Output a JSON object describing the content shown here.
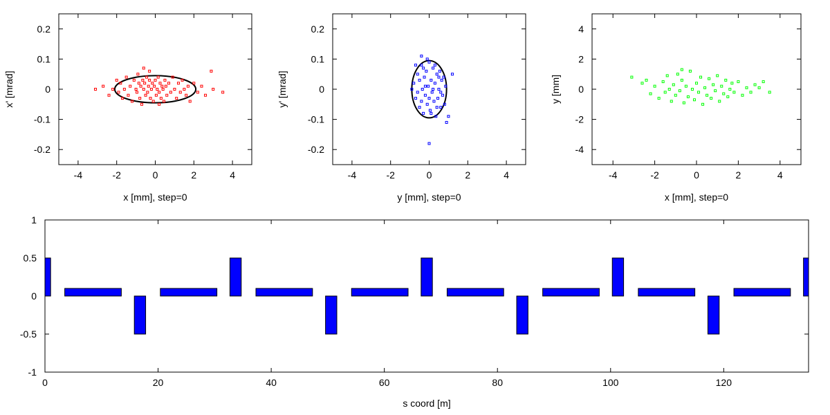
{
  "chart_data": [
    {
      "type": "scatter",
      "xlabel": "x [mm], step=0",
      "ylabel": "x' [mrad]",
      "xlim": [
        -5,
        5
      ],
      "ylim": [
        -0.25,
        0.25
      ],
      "xticks": [
        -4,
        -2,
        0,
        2,
        4
      ],
      "yticks": [
        0.2,
        0.1,
        0,
        -0.1,
        -0.2
      ],
      "ytick_labels": [
        "0.2",
        "0.1",
        "0",
        "-0.1",
        "-0.2"
      ],
      "ellipse": {
        "center": [
          0,
          0
        ],
        "semi_axes": [
          2.1,
          0.045
        ]
      },
      "marker_color": "#ff0000",
      "points": [
        [
          -3.1,
          0.0
        ],
        [
          -2.7,
          0.01
        ],
        [
          -2.4,
          -0.02
        ],
        [
          -2.2,
          0.0
        ],
        [
          -2.0,
          0.03
        ],
        [
          -1.9,
          -0.01
        ],
        [
          -1.8,
          0.02
        ],
        [
          -1.7,
          -0.03
        ],
        [
          -1.6,
          0.0
        ],
        [
          -1.5,
          0.04
        ],
        [
          -1.4,
          -0.02
        ],
        [
          -1.3,
          0.01
        ],
        [
          -1.2,
          -0.04
        ],
        [
          -1.1,
          0.03
        ],
        [
          -1.0,
          0.0
        ],
        [
          -0.95,
          -0.01
        ],
        [
          -0.9,
          0.05
        ],
        [
          -0.85,
          0.02
        ],
        [
          -0.8,
          -0.03
        ],
        [
          -0.75,
          0.01
        ],
        [
          -0.7,
          -0.05
        ],
        [
          -0.65,
          0.03
        ],
        [
          -0.6,
          0.0
        ],
        [
          -0.55,
          0.02
        ],
        [
          -0.5,
          -0.02
        ],
        [
          -0.45,
          0.04
        ],
        [
          -0.4,
          -0.01
        ],
        [
          -0.35,
          0.01
        ],
        [
          -0.3,
          0.03
        ],
        [
          -0.25,
          -0.03
        ],
        [
          -0.2,
          0.0
        ],
        [
          -0.15,
          0.02
        ],
        [
          -0.1,
          -0.04
        ],
        [
          -0.05,
          0.01
        ],
        [
          0.0,
          0.03
        ],
        [
          0.05,
          -0.02
        ],
        [
          0.1,
          0.0
        ],
        [
          0.15,
          0.04
        ],
        [
          0.2,
          -0.01
        ],
        [
          0.25,
          0.02
        ],
        [
          0.3,
          -0.03
        ],
        [
          0.35,
          0.01
        ],
        [
          0.4,
          0.0
        ],
        [
          0.45,
          -0.04
        ],
        [
          0.5,
          0.03
        ],
        [
          0.55,
          0.01
        ],
        [
          0.6,
          -0.02
        ],
        [
          0.7,
          0.02
        ],
        [
          0.8,
          -0.01
        ],
        [
          0.9,
          0.04
        ],
        [
          1.0,
          0.0
        ],
        [
          1.1,
          -0.03
        ],
        [
          1.2,
          0.02
        ],
        [
          1.3,
          -0.01
        ],
        [
          1.4,
          0.03
        ],
        [
          1.5,
          0.0
        ],
        [
          1.6,
          -0.02
        ],
        [
          1.7,
          0.01
        ],
        [
          1.8,
          -0.04
        ],
        [
          2.0,
          0.02
        ],
        [
          2.2,
          -0.01
        ],
        [
          2.4,
          0.01
        ],
        [
          2.6,
          -0.02
        ],
        [
          -0.6,
          0.07
        ],
        [
          3.5,
          -0.01
        ],
        [
          2.9,
          0.06
        ],
        [
          3.0,
          0.0
        ],
        [
          -0.3,
          0.06
        ],
        [
          0.2,
          -0.05
        ]
      ]
    },
    {
      "type": "scatter",
      "xlabel": "y [mm], step=0",
      "ylabel": "y' [mrad]",
      "xlim": [
        -5,
        5
      ],
      "ylim": [
        -0.25,
        0.25
      ],
      "xticks": [
        -4,
        -2,
        0,
        2,
        4
      ],
      "yticks": [
        0.2,
        0.1,
        0,
        -0.1,
        -0.2
      ],
      "ytick_labels": [
        "0.2",
        "0.1",
        "0",
        "-0.1",
        "-0.2"
      ],
      "ellipse": {
        "center": [
          0,
          0
        ],
        "semi_axes": [
          0.9,
          0.095
        ]
      },
      "marker_color": "#0000ff",
      "points": [
        [
          -0.8,
          0.02
        ],
        [
          -0.7,
          -0.03
        ],
        [
          -0.6,
          0.05
        ],
        [
          -0.5,
          -0.06
        ],
        [
          -0.4,
          0.08
        ],
        [
          -0.35,
          0.0
        ],
        [
          -0.3,
          -0.08
        ],
        [
          -0.25,
          0.04
        ],
        [
          -0.2,
          -0.02
        ],
        [
          -0.15,
          0.06
        ],
        [
          -0.1,
          -0.05
        ],
        [
          -0.05,
          0.01
        ],
        [
          0.0,
          0.09
        ],
        [
          0.05,
          -0.07
        ],
        [
          0.1,
          0.03
        ],
        [
          0.15,
          -0.01
        ],
        [
          0.2,
          0.07
        ],
        [
          0.25,
          -0.04
        ],
        [
          0.3,
          0.02
        ],
        [
          0.35,
          -0.09
        ],
        [
          0.4,
          0.05
        ],
        [
          0.45,
          -0.03
        ],
        [
          0.5,
          0.0
        ],
        [
          0.55,
          0.06
        ],
        [
          0.6,
          -0.06
        ],
        [
          0.65,
          0.03
        ],
        [
          0.7,
          -0.02
        ],
        [
          0.75,
          0.04
        ],
        [
          0.8,
          -0.05
        ],
        [
          0.85,
          0.01
        ],
        [
          -0.6,
          -0.01
        ],
        [
          -0.5,
          0.03
        ],
        [
          -0.4,
          -0.04
        ],
        [
          -0.3,
          0.07
        ],
        [
          -0.2,
          0.01
        ],
        [
          -0.1,
          0.1
        ],
        [
          0.0,
          -0.03
        ],
        [
          0.1,
          -0.08
        ],
        [
          0.2,
          0.0
        ],
        [
          0.3,
          0.08
        ],
        [
          0.4,
          -0.06
        ],
        [
          0.5,
          0.04
        ],
        [
          0.6,
          -0.01
        ],
        [
          -0.9,
          0.0
        ],
        [
          1.0,
          -0.09
        ],
        [
          1.2,
          0.05
        ],
        [
          -0.7,
          0.08
        ],
        [
          0.9,
          -0.11
        ],
        [
          -0.4,
          0.11
        ],
        [
          0.0,
          -0.18
        ]
      ]
    },
    {
      "type": "scatter",
      "xlabel": "x [mm], step=0",
      "ylabel": "y [mm]",
      "xlim": [
        -5,
        5
      ],
      "ylim": [
        -5,
        5
      ],
      "xticks": [
        -4,
        -2,
        0,
        2,
        4
      ],
      "yticks": [
        4,
        2,
        0,
        -2,
        -4
      ],
      "ytick_labels": [
        "4",
        "2",
        "0",
        "-2",
        "-4"
      ],
      "marker_color": "#00ff00",
      "points": [
        [
          -3.1,
          0.8
        ],
        [
          -2.6,
          0.4
        ],
        [
          -2.4,
          0.6
        ],
        [
          -2.2,
          -0.3
        ],
        [
          -2.0,
          0.2
        ],
        [
          -1.8,
          -0.6
        ],
        [
          -1.6,
          0.5
        ],
        [
          -1.5,
          -0.2
        ],
        [
          -1.4,
          0.9
        ],
        [
          -1.3,
          0.0
        ],
        [
          -1.2,
          -0.8
        ],
        [
          -1.1,
          0.3
        ],
        [
          -1.0,
          -0.4
        ],
        [
          -0.9,
          1.0
        ],
        [
          -0.8,
          -0.1
        ],
        [
          -0.7,
          0.6
        ],
        [
          -0.6,
          -0.9
        ],
        [
          -0.5,
          0.2
        ],
        [
          -0.4,
          -0.5
        ],
        [
          -0.3,
          1.2
        ],
        [
          -0.2,
          0.0
        ],
        [
          -0.1,
          -0.7
        ],
        [
          0.0,
          0.4
        ],
        [
          0.1,
          -0.2
        ],
        [
          0.2,
          0.8
        ],
        [
          0.3,
          -1.0
        ],
        [
          0.4,
          0.1
        ],
        [
          0.5,
          -0.4
        ],
        [
          0.6,
          0.7
        ],
        [
          0.7,
          -0.6
        ],
        [
          0.8,
          0.3
        ],
        [
          0.9,
          -0.1
        ],
        [
          1.0,
          0.9
        ],
        [
          1.1,
          -0.8
        ],
        [
          1.2,
          0.2
        ],
        [
          1.3,
          -0.3
        ],
        [
          1.4,
          0.6
        ],
        [
          1.5,
          -0.5
        ],
        [
          1.6,
          0.0
        ],
        [
          1.7,
          0.4
        ],
        [
          1.8,
          -0.2
        ],
        [
          2.0,
          0.5
        ],
        [
          2.2,
          -0.4
        ],
        [
          2.4,
          0.1
        ],
        [
          2.6,
          -0.2
        ],
        [
          2.8,
          0.3
        ],
        [
          3.0,
          0.1
        ],
        [
          3.2,
          0.5
        ],
        [
          3.5,
          -0.2
        ],
        [
          -0.7,
          1.3
        ]
      ]
    },
    {
      "type": "bar",
      "xlabel": "s coord [m]",
      "xlim": [
        0,
        135
      ],
      "ylim": [
        -1,
        1
      ],
      "xticks": [
        0,
        20,
        40,
        60,
        80,
        100,
        120
      ],
      "yticks": [
        1,
        0.5,
        0,
        -0.5,
        -1
      ],
      "ytick_labels": [
        "1",
        "0.5",
        "0",
        "-0.5",
        "-1"
      ],
      "bar_color": "#0000ff",
      "elements": [
        {
          "s_start": 0,
          "s_end": 1,
          "value": 0.5
        },
        {
          "s_start": 3.5,
          "s_end": 13.5,
          "value": 0.1
        },
        {
          "s_start": 15.8,
          "s_end": 17.8,
          "value": -0.5
        },
        {
          "s_start": 20.4,
          "s_end": 30.4,
          "value": 0.1
        },
        {
          "s_start": 32.7,
          "s_end": 34.7,
          "value": 0.5
        },
        {
          "s_start": 37.3,
          "s_end": 47.3,
          "value": 0.1
        },
        {
          "s_start": 49.6,
          "s_end": 51.6,
          "value": -0.5
        },
        {
          "s_start": 54.2,
          "s_end": 64.2,
          "value": 0.1
        },
        {
          "s_start": 66.5,
          "s_end": 68.5,
          "value": 0.5
        },
        {
          "s_start": 71.1,
          "s_end": 81.1,
          "value": 0.1
        },
        {
          "s_start": 83.4,
          "s_end": 85.4,
          "value": -0.5
        },
        {
          "s_start": 88.0,
          "s_end": 98.0,
          "value": 0.1
        },
        {
          "s_start": 100.3,
          "s_end": 102.3,
          "value": 0.5
        },
        {
          "s_start": 104.9,
          "s_end": 114.9,
          "value": 0.1
        },
        {
          "s_start": 117.2,
          "s_end": 119.2,
          "value": -0.5
        },
        {
          "s_start": 121.8,
          "s_end": 131.8,
          "value": 0.1
        },
        {
          "s_start": 134.1,
          "s_end": 135,
          "value": 0.5
        }
      ]
    }
  ]
}
